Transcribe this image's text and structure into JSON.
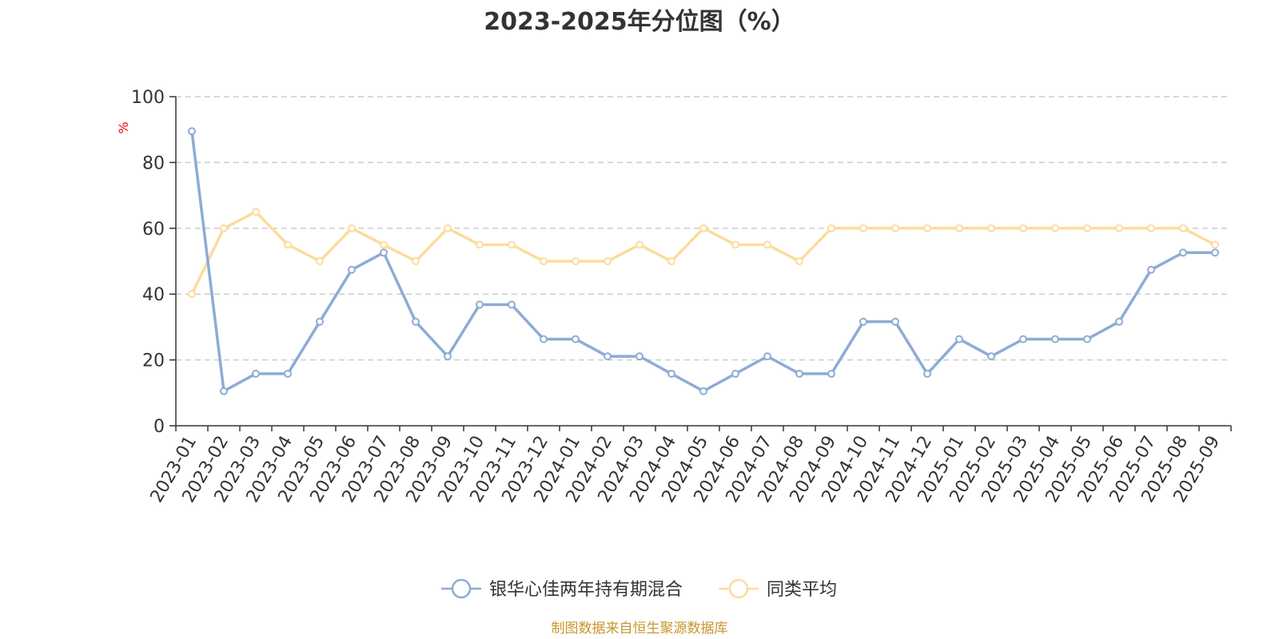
{
  "chart_data": {
    "type": "line",
    "title": "2023-2025年分位图（%）",
    "ylabel": "%",
    "ylim": [
      0,
      100
    ],
    "yticks": [
      0,
      20,
      40,
      60,
      80,
      100
    ],
    "grid": true,
    "legend_position": "bottom",
    "categories": [
      "2023-01",
      "2023-02",
      "2023-03",
      "2023-04",
      "2023-05",
      "2023-06",
      "2023-07",
      "2023-08",
      "2023-09",
      "2023-10",
      "2023-11",
      "2023-12",
      "2024-01",
      "2024-02",
      "2024-03",
      "2024-04",
      "2024-05",
      "2024-06",
      "2024-07",
      "2024-08",
      "2024-09",
      "2024-10",
      "2024-11",
      "2024-12",
      "2025-01",
      "2025-02",
      "2025-03",
      "2025-04",
      "2025-05",
      "2025-06",
      "2025-07",
      "2025-08",
      "2025-09"
    ],
    "series": [
      {
        "name": "银华心佳两年持有期混合",
        "color": "#8eabd6",
        "values": [
          89.5,
          10.5,
          15.8,
          15.8,
          31.6,
          47.4,
          52.6,
          31.6,
          21.1,
          36.8,
          36.8,
          26.3,
          26.3,
          21.1,
          21.1,
          15.8,
          10.5,
          15.8,
          21.1,
          15.8,
          15.8,
          31.6,
          31.6,
          15.8,
          26.3,
          21.1,
          26.3,
          26.3,
          26.3,
          31.6,
          47.4,
          52.6,
          52.6
        ]
      },
      {
        "name": "同类平均",
        "color": "#fcdc9c",
        "values": [
          40,
          60,
          65,
          55,
          50,
          60,
          55,
          50,
          60,
          55,
          55,
          50,
          50,
          50,
          55,
          50,
          60,
          55,
          55,
          50,
          60,
          60,
          60,
          60,
          60,
          60,
          60,
          60,
          60,
          60,
          60,
          60,
          55
        ]
      }
    ]
  },
  "footer": {
    "source": "制图数据来自恒生聚源数据库",
    "source_color": "#c8952e"
  }
}
